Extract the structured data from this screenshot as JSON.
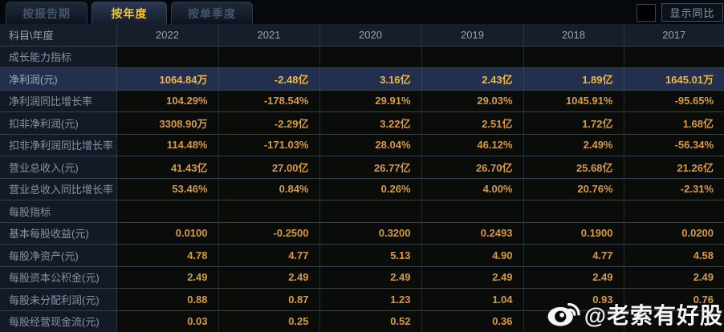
{
  "tabs": [
    {
      "label": "按报告期",
      "active": false
    },
    {
      "label": "按年度",
      "active": true
    },
    {
      "label": "按单季度",
      "active": false
    }
  ],
  "controls": {
    "show_yoy_label": "显示同比",
    "yoy_checkbox_checked": false
  },
  "table": {
    "corner_header": "科目\\年度",
    "year_columns": [
      "2022",
      "2021",
      "2020",
      "2019",
      "2018",
      "2017"
    ],
    "more_icon": "»",
    "rows": [
      {
        "label": "成长能力指标",
        "type": "section",
        "values": [
          "",
          "",
          "",
          "",
          "",
          ""
        ]
      },
      {
        "label": "净利润(元)",
        "type": "highlight",
        "values": [
          "1064.84万",
          "-2.48亿",
          "3.16亿",
          "2.43亿",
          "1.89亿",
          "1645.01万"
        ]
      },
      {
        "label": "净利润同比增长率",
        "type": "data",
        "values": [
          "104.29%",
          "-178.54%",
          "29.91%",
          "29.03%",
          "1045.91%",
          "-95.65%"
        ]
      },
      {
        "label": "扣非净利润(元)",
        "type": "data",
        "values": [
          "3308.90万",
          "-2.29亿",
          "3.22亿",
          "2.51亿",
          "1.72亿",
          "1.68亿"
        ]
      },
      {
        "label": "扣非净利润同比增长率",
        "type": "data",
        "values": [
          "114.48%",
          "-171.03%",
          "28.04%",
          "46.12%",
          "2.49%",
          "-56.34%"
        ]
      },
      {
        "label": "营业总收入(元)",
        "type": "data",
        "values": [
          "41.43亿",
          "27.00亿",
          "26.77亿",
          "26.70亿",
          "25.68亿",
          "21.26亿"
        ]
      },
      {
        "label": "营业总收入同比增长率",
        "type": "data",
        "values": [
          "53.46%",
          "0.84%",
          "0.26%",
          "4.00%",
          "20.76%",
          "-2.31%"
        ]
      },
      {
        "label": "每股指标",
        "type": "section",
        "values": [
          "",
          "",
          "",
          "",
          "",
          ""
        ]
      },
      {
        "label": "基本每股收益(元)",
        "type": "data",
        "values": [
          "0.0100",
          "-0.2500",
          "0.3200",
          "0.2493",
          "0.1900",
          "0.0200"
        ]
      },
      {
        "label": "每股净资产(元)",
        "type": "data",
        "values": [
          "4.78",
          "4.77",
          "5.13",
          "4.90",
          "4.77",
          "4.58"
        ]
      },
      {
        "label": "每股资本公积金(元)",
        "type": "data",
        "values": [
          "2.49",
          "2.49",
          "2.49",
          "2.49",
          "2.49",
          "2.49"
        ]
      },
      {
        "label": "每股未分配利润(元)",
        "type": "data",
        "values": [
          "0.88",
          "0.87",
          "1.23",
          "1.04",
          "0.93",
          "0.76"
        ]
      },
      {
        "label": "每股经营现金流(元)",
        "type": "data",
        "values": [
          "0.03",
          "0.25",
          "0.52",
          "0.36",
          "",
          ""
        ]
      }
    ]
  },
  "watermark": {
    "icon": "weibo-icon",
    "text": "@老索有好股"
  },
  "colors": {
    "accent_gold": "#f7c52e",
    "value_text": "#d89a43",
    "highlight_value": "#f2b742",
    "highlight_row_bg": "#22304e",
    "label_column_bg": "#121a27",
    "header_row_bg": "#161e2b",
    "page_bg": "#05080d"
  }
}
